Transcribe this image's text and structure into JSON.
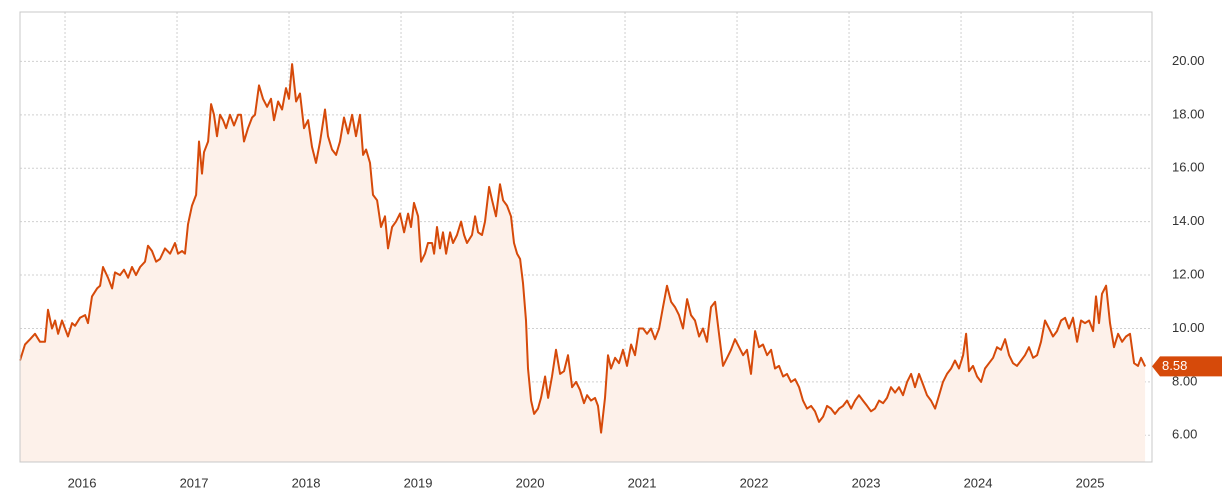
{
  "chart_data": {
    "type": "line",
    "x": [
      2015.598,
      2015.643,
      2015.688,
      2015.732,
      2015.777,
      2015.821,
      2015.848,
      2015.884,
      2015.911,
      2015.938,
      2015.973,
      2016.0,
      2016.027,
      2016.063,
      2016.089,
      2016.134,
      2016.179,
      2016.205,
      2016.241,
      2016.286,
      2016.313,
      2016.339,
      2016.384,
      2016.42,
      2016.446,
      2016.491,
      2016.527,
      2016.563,
      2016.598,
      2016.634,
      2016.67,
      2016.714,
      2016.741,
      2016.777,
      2016.813,
      2016.848,
      2016.893,
      2016.938,
      2016.982,
      2017.009,
      2017.045,
      2017.071,
      2017.098,
      2017.134,
      2017.17,
      2017.196,
      2017.223,
      2017.241,
      2017.277,
      2017.304,
      2017.33,
      2017.357,
      2017.384,
      2017.411,
      2017.438,
      2017.473,
      2017.509,
      2017.545,
      2017.571,
      2017.598,
      2017.634,
      2017.67,
      2017.696,
      2017.732,
      2017.768,
      2017.804,
      2017.839,
      2017.866,
      2017.902,
      2017.938,
      2017.973,
      2018.0,
      2018.027,
      2018.063,
      2018.098,
      2018.134,
      2018.17,
      2018.205,
      2018.241,
      2018.277,
      2018.321,
      2018.348,
      2018.384,
      2018.42,
      2018.455,
      2018.491,
      2018.527,
      2018.563,
      2018.598,
      2018.634,
      2018.661,
      2018.688,
      2018.723,
      2018.75,
      2018.786,
      2018.821,
      2018.857,
      2018.884,
      2018.92,
      2018.955,
      2018.991,
      2019.027,
      2019.063,
      2019.089,
      2019.116,
      2019.152,
      2019.179,
      2019.214,
      2019.241,
      2019.277,
      2019.295,
      2019.321,
      2019.348,
      2019.375,
      2019.402,
      2019.438,
      2019.464,
      2019.5,
      2019.536,
      2019.563,
      2019.589,
      2019.634,
      2019.661,
      2019.688,
      2019.723,
      2019.75,
      2019.786,
      2019.813,
      2019.848,
      2019.884,
      2019.911,
      2019.946,
      2019.982,
      2020.009,
      2020.036,
      2020.063,
      2020.089,
      2020.116,
      2020.134,
      2020.161,
      2020.188,
      2020.223,
      2020.25,
      2020.286,
      2020.313,
      2020.348,
      2020.384,
      2020.42,
      2020.455,
      2020.491,
      2020.527,
      2020.563,
      2020.598,
      2020.634,
      2020.661,
      2020.696,
      2020.732,
      2020.759,
      2020.786,
      2020.821,
      2020.848,
      2020.875,
      2020.911,
      2020.946,
      2020.982,
      2021.018,
      2021.054,
      2021.089,
      2021.125,
      2021.161,
      2021.196,
      2021.232,
      2021.268,
      2021.304,
      2021.339,
      2021.375,
      2021.411,
      2021.446,
      2021.482,
      2021.518,
      2021.554,
      2021.589,
      2021.625,
      2021.661,
      2021.696,
      2021.732,
      2021.768,
      2021.804,
      2021.839,
      2021.875,
      2021.911,
      2021.946,
      2021.982,
      2022.018,
      2022.054,
      2022.089,
      2022.125,
      2022.161,
      2022.196,
      2022.232,
      2022.268,
      2022.304,
      2022.339,
      2022.375,
      2022.411,
      2022.446,
      2022.482,
      2022.518,
      2022.554,
      2022.589,
      2022.625,
      2022.661,
      2022.696,
      2022.732,
      2022.768,
      2022.804,
      2022.839,
      2022.875,
      2022.911,
      2022.946,
      2022.982,
      2023.018,
      2023.054,
      2023.089,
      2023.125,
      2023.161,
      2023.196,
      2023.232,
      2023.268,
      2023.304,
      2023.339,
      2023.375,
      2023.411,
      2023.446,
      2023.482,
      2023.518,
      2023.554,
      2023.589,
      2023.625,
      2023.661,
      2023.696,
      2023.732,
      2023.768,
      2023.804,
      2023.839,
      2023.875,
      2023.911,
      2023.946,
      2023.982,
      2024.018,
      2024.045,
      2024.071,
      2024.107,
      2024.143,
      2024.179,
      2024.214,
      2024.25,
      2024.286,
      2024.321,
      2024.357,
      2024.393,
      2024.429,
      2024.464,
      2024.5,
      2024.536,
      2024.571,
      2024.607,
      2024.643,
      2024.679,
      2024.714,
      2024.75,
      2024.786,
      2024.821,
      2024.857,
      2024.893,
      2024.929,
      2024.964,
      2025.0,
      2025.036,
      2025.071,
      2025.107,
      2025.143,
      2025.179,
      2025.205,
      2025.232,
      2025.259,
      2025.295,
      2025.33,
      2025.366,
      2025.402,
      2025.438,
      2025.473,
      2025.509,
      2025.545,
      2025.58,
      2025.607,
      2025.643
    ],
    "series": [
      {
        "color": "#d64a0a",
        "fill": "#fdf1ea",
        "values": [
          8.8,
          9.4,
          9.6,
          9.8,
          9.5,
          9.5,
          10.7,
          10.0,
          10.3,
          9.8,
          10.3,
          10.0,
          9.7,
          10.2,
          10.1,
          10.4,
          10.5,
          10.2,
          11.2,
          11.5,
          11.6,
          12.3,
          11.9,
          11.5,
          12.1,
          12.0,
          12.2,
          11.9,
          12.3,
          12.0,
          12.3,
          12.5,
          13.1,
          12.9,
          12.5,
          12.6,
          13.0,
          12.8,
          13.2,
          12.8,
          12.9,
          12.8,
          13.9,
          14.6,
          15.0,
          17.0,
          15.8,
          16.6,
          17.0,
          18.4,
          18.0,
          17.2,
          18.0,
          17.8,
          17.5,
          18.0,
          17.6,
          18.0,
          18.0,
          17.0,
          17.5,
          17.9,
          18.0,
          19.1,
          18.6,
          18.3,
          18.6,
          17.8,
          18.5,
          18.2,
          19.0,
          18.6,
          19.9,
          18.5,
          18.8,
          17.5,
          17.8,
          16.8,
          16.2,
          17.0,
          18.2,
          17.2,
          16.7,
          16.5,
          17.0,
          17.9,
          17.3,
          18.0,
          17.2,
          18.0,
          16.5,
          16.7,
          16.2,
          15.0,
          14.8,
          13.8,
          14.2,
          13.0,
          13.8,
          14.0,
          14.3,
          13.6,
          14.3,
          13.8,
          14.7,
          14.2,
          12.5,
          12.8,
          13.2,
          13.2,
          12.8,
          13.8,
          13.0,
          13.6,
          12.8,
          13.6,
          13.2,
          13.5,
          14.0,
          13.5,
          13.2,
          13.5,
          14.2,
          13.6,
          13.5,
          14.0,
          15.3,
          14.8,
          14.2,
          15.4,
          14.8,
          14.6,
          14.2,
          13.2,
          12.8,
          12.6,
          11.7,
          10.3,
          8.5,
          7.3,
          6.8,
          7.0,
          7.4,
          8.2,
          7.4,
          8.2,
          9.2,
          8.3,
          8.4,
          9.0,
          7.8,
          8.0,
          7.7,
          7.2,
          7.5,
          7.3,
          7.4,
          7.1,
          6.1,
          7.4,
          9.0,
          8.5,
          8.9,
          8.7,
          9.2,
          8.6,
          9.4,
          9.0,
          10.0,
          10.0,
          9.8,
          10.0,
          9.6,
          10.0,
          10.8,
          11.6,
          11.0,
          10.8,
          10.5,
          10.0,
          11.1,
          10.5,
          10.3,
          9.7,
          10.0,
          9.5,
          10.8,
          11.0,
          9.8,
          8.6,
          8.9,
          9.2,
          9.6,
          9.3,
          9.0,
          9.2,
          8.3,
          9.9,
          9.3,
          9.4,
          9.0,
          9.2,
          8.5,
          8.6,
          8.2,
          8.3,
          8.0,
          8.1,
          7.8,
          7.3,
          7.0,
          7.1,
          6.9,
          6.5,
          6.7,
          7.1,
          7.0,
          6.8,
          7.0,
          7.1,
          7.3,
          7.0,
          7.3,
          7.5,
          7.3,
          7.1,
          6.9,
          7.0,
          7.3,
          7.2,
          7.4,
          7.8,
          7.6,
          7.8,
          7.5,
          8.0,
          8.3,
          7.8,
          8.3,
          7.9,
          7.5,
          7.3,
          7.0,
          7.5,
          8.0,
          8.3,
          8.5,
          8.8,
          8.5,
          9.0,
          9.8,
          8.4,
          8.6,
          8.2,
          8.0,
          8.5,
          8.7,
          8.9,
          9.3,
          9.2,
          9.6,
          9.0,
          8.7,
          8.6,
          8.8,
          9.0,
          9.3,
          8.9,
          9.0,
          9.5,
          10.3,
          10.0,
          9.7,
          9.9,
          10.3,
          10.4,
          10.0,
          10.4,
          9.5,
          10.3,
          10.2,
          10.3,
          9.9,
          11.2,
          10.2,
          11.3,
          11.6,
          10.2,
          9.3,
          9.8,
          9.5,
          9.7,
          9.8,
          8.7,
          8.6,
          8.9,
          8.58
        ]
      }
    ],
    "last_value": 8.58,
    "xlim": [
      2015.598,
      2025.705
    ],
    "xticks": [
      2016,
      2017,
      2018,
      2019,
      2020,
      2021,
      2022,
      2023,
      2024,
      2025
    ],
    "ylim": [
      5,
      21.85
    ],
    "yticks": [
      {
        "value": 6,
        "label": "6.00"
      },
      {
        "value": 8,
        "label": "8.00"
      },
      {
        "value": 10,
        "label": "10.00"
      },
      {
        "value": 12,
        "label": "12.00"
      },
      {
        "value": 14,
        "label": "14.00"
      },
      {
        "value": 16,
        "label": "16.00"
      },
      {
        "value": 18,
        "label": "18.00"
      },
      {
        "value": 20,
        "label": "20.00"
      }
    ],
    "grid": true
  }
}
